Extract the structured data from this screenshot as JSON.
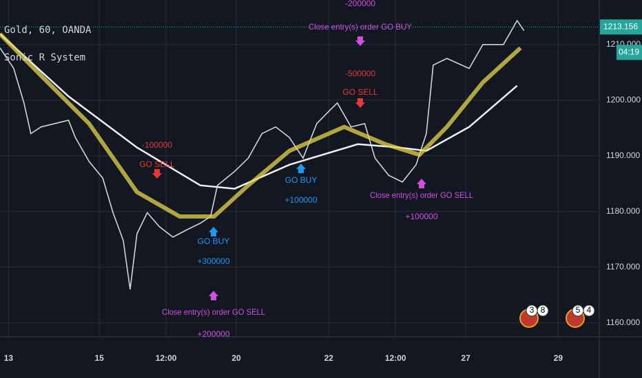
{
  "chart_data": {
    "type": "line",
    "title": "Gold, 60, OANDA",
    "subtitle": "Sonic R System",
    "x": [
      0,
      8,
      14,
      18,
      24,
      32,
      40,
      44,
      52,
      60,
      66,
      72,
      76,
      80,
      86,
      93,
      101,
      109,
      117,
      123,
      127,
      137,
      145,
      153,
      161,
      169,
      177,
      185,
      193,
      197,
      205,
      213,
      219,
      227,
      235,
      243,
      249,
      253,
      261,
      274,
      282,
      294,
      302,
      306
    ],
    "series": [
      {
        "color": "#d1d4dc",
        "values": [
          1209.4,
          1205.7,
          1199.5,
          1194,
          1195.2,
          1195.8,
          1196.4,
          1193.3,
          1189,
          1186,
          1179.8,
          1174.8,
          1166,
          1176,
          1179.8,
          1177.3,
          1175.4,
          1176.7,
          1177.9,
          1179.1,
          1184.7,
          1187.2,
          1189.6,
          1194,
          1195.2,
          1193.3,
          1189.6,
          1195.8,
          1198.3,
          1199.5,
          1195.2,
          1195.8,
          1189.6,
          1186.5,
          1185.3,
          1188.4,
          1194,
          1206.3,
          1207.5,
          1205.7,
          1210,
          1210,
          1214.3,
          1212.5
        ]
      },
      {
        "color": "#f0f0f0",
        "x": [
          0,
          40,
          80,
          117,
          137,
          169,
          209,
          233,
          249,
          274,
          302
        ],
        "values": [
          1211.9,
          1200.7,
          1191.5,
          1184.7,
          1184.1,
          1188.4,
          1192.1,
          1191.5,
          1190.9,
          1195.2,
          1202.6
        ]
      },
      {
        "color": "#e6d64a",
        "x": [
          0,
          24,
          52,
          80,
          105,
          125,
          145,
          169,
          201,
          225,
          245,
          261,
          282,
          304
        ],
        "values": [
          1211.9,
          1204.4,
          1195.8,
          1183.5,
          1179.1,
          1179.1,
          1184.7,
          1190.9,
          1195.2,
          1192.1,
          1190.2,
          1195.2,
          1203.2,
          1209.4
        ]
      }
    ],
    "xlim": [
      0,
      350
    ],
    "xticks": [
      {
        "value": 5,
        "label": "13"
      },
      {
        "value": 58,
        "label": "15"
      },
      {
        "value": 97,
        "label": "12:00"
      },
      {
        "value": 138,
        "label": "20"
      },
      {
        "value": 192,
        "label": "22"
      },
      {
        "value": 231,
        "label": "12:00"
      },
      {
        "value": 272,
        "label": "27"
      },
      {
        "value": 326,
        "label": "29"
      }
    ],
    "ylim": [
      1157.5,
      1218
    ],
    "yticks": [
      {
        "value": 1160,
        "label": "1160.000"
      },
      {
        "value": 1170,
        "label": "1170.000"
      },
      {
        "value": 1180,
        "label": "1180.000"
      },
      {
        "value": 1190,
        "label": "1190.000"
      },
      {
        "value": 1200,
        "label": "1200.000"
      },
      {
        "value": 1210,
        "label": "1210.000"
      }
    ],
    "grid": true,
    "last_price": 1213.156,
    "countdown": "04:19",
    "annotations": [
      {
        "text": "-100000",
        "color": "#e53935"
      },
      {
        "text": "GO SELL",
        "color": "#e53935"
      },
      {
        "text": "GO BUY",
        "color": "#2196f3"
      },
      {
        "text": "+300000",
        "color": "#2196f3"
      },
      {
        "text": "Close entry(s) order GO SELL",
        "color": "#d04fe0"
      },
      {
        "text": "+200000",
        "color": "#d04fe0"
      },
      {
        "text": "-200000",
        "color": "#d04fe0"
      },
      {
        "text": "Close entry(s) order GO BUY",
        "color": "#d04fe0"
      },
      {
        "text": "-500000",
        "color": "#e53935"
      },
      {
        "text": "GO SELL",
        "color": "#e53935"
      },
      {
        "text": "GO BUY",
        "color": "#2196f3"
      },
      {
        "text": "+100000",
        "color": "#2196f3"
      },
      {
        "text": "Close entry(s) order GO SELL",
        "color": "#d04fe0"
      },
      {
        "text": "+100000",
        "color": "#d04fe0"
      }
    ],
    "events": [
      "3",
      "8",
      "5",
      "4"
    ]
  }
}
